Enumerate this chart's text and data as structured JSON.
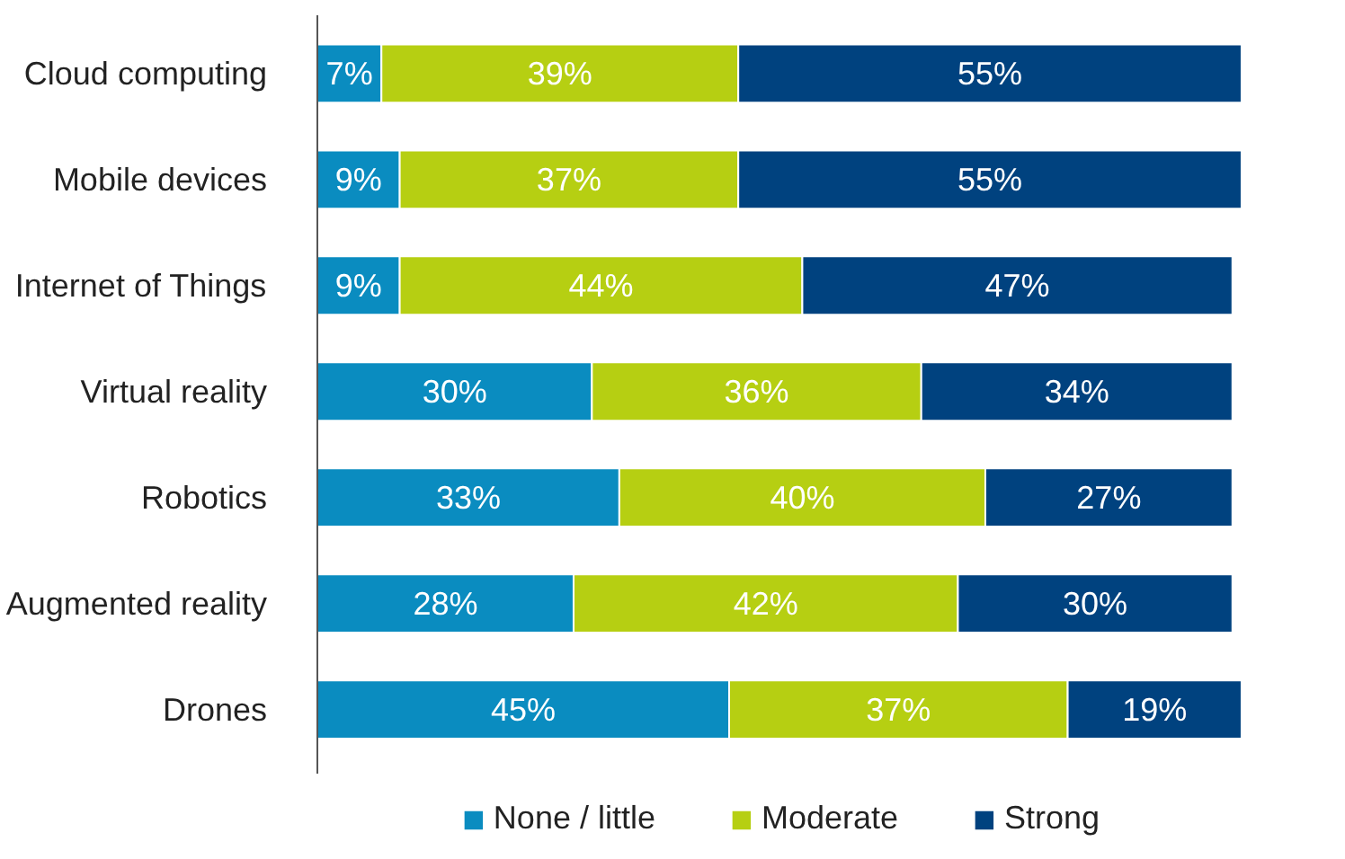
{
  "chart_data": {
    "type": "bar",
    "orientation": "horizontal",
    "stacked": true,
    "legend": "bottom",
    "tick_labels": "y",
    "categories": [
      "Cloud computing",
      "Mobile devices",
      "Internet of Things",
      "Virtual reality",
      "Robotics",
      "Augmented reality",
      "Drones"
    ],
    "series": [
      {
        "name": "None / little",
        "color": "#0a8cc0",
        "values": [
          7,
          9,
          9,
          30,
          33,
          28,
          45
        ],
        "value_labels": [
          "7%",
          "9%",
          "9%",
          "30%",
          "33%",
          "28%",
          "45%"
        ]
      },
      {
        "name": "Moderate",
        "color": "#b6cf12",
        "values": [
          39,
          37,
          44,
          36,
          40,
          42,
          37
        ],
        "value_labels": [
          "39%",
          "37%",
          "44%",
          "36%",
          "40%",
          "42%",
          "37%"
        ]
      },
      {
        "name": "Strong",
        "color": "#00427f",
        "values": [
          55,
          55,
          47,
          34,
          27,
          30,
          19
        ],
        "value_labels": [
          "55%",
          "55%",
          "47%",
          "34%",
          "27%",
          "30%",
          "19%"
        ]
      }
    ]
  }
}
